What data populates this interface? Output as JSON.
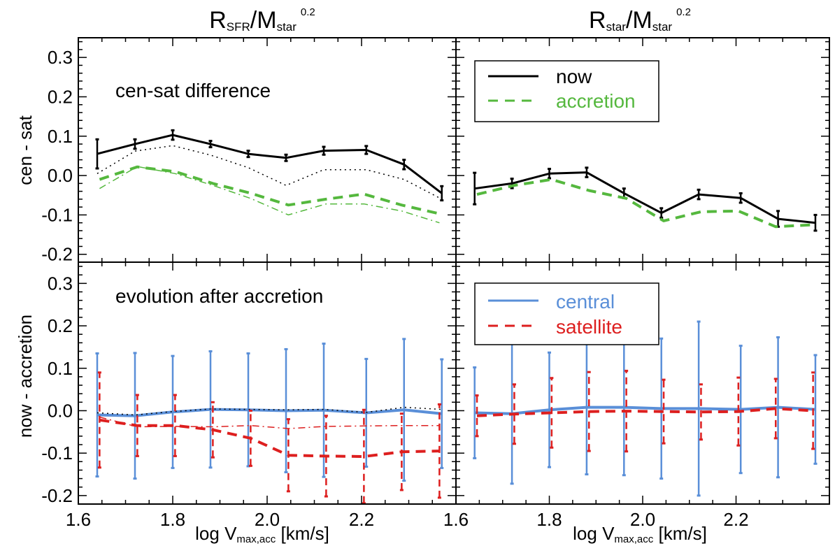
{
  "colors": {
    "black": "#000000",
    "green": "#55b83e",
    "blue": "#5a8fd8",
    "red": "#dd1f1f"
  },
  "column_titles": {
    "left": {
      "main": "R",
      "sub1": "SFR",
      "mid": "/M",
      "sub2": "star",
      "sup": "0.2"
    },
    "right": {
      "main": "R",
      "sub1": "star",
      "mid": "/M",
      "sub2": "star",
      "sup": "0.2"
    }
  },
  "ylabels": {
    "top": "cen - sat",
    "bottom": "now - accretion"
  },
  "xlabel": {
    "main": "log V",
    "sub": "max,acc",
    "unit": " [km/s]"
  },
  "panel_texts": {
    "top_left": "cen-sat difference",
    "bottom_left": "evolution after accretion"
  },
  "legends": {
    "top": [
      "now",
      "accretion"
    ],
    "bottom": [
      "central",
      "satellite"
    ]
  },
  "xticks": [
    "1.6",
    "1.8",
    "2.0",
    "2.2"
  ],
  "yticks": [
    "-0.2",
    "-0.1",
    "0.0",
    "0.1",
    "0.2",
    "0.3"
  ],
  "chart_data": [
    {
      "type": "line",
      "panel": "top-left",
      "xlim": [
        1.6,
        2.4
      ],
      "ylim": [
        -0.22,
        0.35
      ],
      "series": [
        {
          "name": "now",
          "style": "solid-black",
          "x": [
            1.64,
            1.72,
            1.8,
            1.88,
            1.96,
            2.04,
            2.12,
            2.21,
            2.29,
            2.37
          ],
          "y": [
            0.055,
            0.08,
            0.103,
            0.08,
            0.055,
            0.045,
            0.063,
            0.065,
            0.028,
            -0.045
          ],
          "err": [
            0.037,
            0.012,
            0.012,
            0.008,
            0.008,
            0.008,
            0.01,
            0.01,
            0.012,
            0.018
          ]
        },
        {
          "style": "dotted-black",
          "x": [
            1.64,
            1.72,
            1.8,
            1.88,
            1.96,
            2.04,
            2.12,
            2.21,
            2.29,
            2.37
          ],
          "y": [
            0.005,
            0.062,
            0.076,
            0.052,
            0.02,
            -0.025,
            0.015,
            0.015,
            -0.01,
            -0.06
          ]
        },
        {
          "name": "accretion",
          "style": "dashed-green",
          "x": [
            1.645,
            1.725,
            1.805,
            1.885,
            1.965,
            2.045,
            2.125,
            2.205,
            2.285,
            2.365
          ],
          "y": [
            -0.01,
            0.022,
            0.01,
            -0.02,
            -0.045,
            -0.075,
            -0.06,
            -0.047,
            -0.075,
            -0.097
          ]
        },
        {
          "style": "dashdot-green",
          "x": [
            1.645,
            1.725,
            1.805,
            1.885,
            1.965,
            2.045,
            2.125,
            2.205,
            2.285,
            2.365
          ],
          "y": [
            -0.033,
            0.023,
            0.005,
            -0.025,
            -0.058,
            -0.1,
            -0.072,
            -0.072,
            -0.09,
            -0.12
          ]
        }
      ]
    },
    {
      "type": "line",
      "panel": "top-right",
      "xlim": [
        1.6,
        2.4
      ],
      "ylim": [
        -0.22,
        0.35
      ],
      "series": [
        {
          "name": "now",
          "style": "solid-black",
          "x": [
            1.64,
            1.72,
            1.8,
            1.88,
            1.96,
            2.04,
            2.12,
            2.21,
            2.29,
            2.37
          ],
          "y": [
            -0.033,
            -0.02,
            0.005,
            0.008,
            -0.045,
            -0.095,
            -0.048,
            -0.057,
            -0.11,
            -0.12
          ],
          "err": [
            0.04,
            0.012,
            0.012,
            0.012,
            0.012,
            0.012,
            0.012,
            0.012,
            0.02,
            0.02
          ]
        },
        {
          "name": "accretion",
          "style": "dashed-green",
          "x": [
            1.645,
            1.725,
            1.805,
            1.885,
            1.965,
            2.045,
            2.125,
            2.205,
            2.285,
            2.365
          ],
          "y": [
            -0.048,
            -0.025,
            -0.01,
            -0.038,
            -0.058,
            -0.115,
            -0.092,
            -0.09,
            -0.13,
            -0.125
          ]
        }
      ]
    },
    {
      "type": "line",
      "panel": "bottom-left",
      "xlim": [
        1.6,
        2.4
      ],
      "ylim": [
        -0.22,
        0.35
      ],
      "series": [
        {
          "name": "central",
          "style": "solid-blue",
          "x": [
            1.64,
            1.72,
            1.8,
            1.88,
            1.96,
            2.04,
            2.12,
            2.21,
            2.29,
            2.37
          ],
          "y": [
            -0.01,
            -0.012,
            -0.003,
            0.003,
            0.002,
            0.0,
            0.001,
            -0.005,
            0.002,
            -0.007
          ],
          "err": [
            0.145,
            0.148,
            0.132,
            0.137,
            0.133,
            0.145,
            0.157,
            0.127,
            0.167,
            0.128
          ]
        },
        {
          "style": "dotted-black",
          "x": [
            1.64,
            1.72,
            1.8,
            1.88,
            1.96,
            2.04,
            2.12,
            2.21,
            2.29,
            2.37
          ],
          "y": [
            -0.005,
            -0.01,
            -0.002,
            0.004,
            0.003,
            0.002,
            0.003,
            -0.004,
            0.008,
            0.003
          ]
        },
        {
          "name": "satellite",
          "style": "dashed-red",
          "x": [
            1.645,
            1.725,
            1.805,
            1.885,
            1.965,
            2.045,
            2.125,
            2.205,
            2.285,
            2.365
          ],
          "y": [
            -0.022,
            -0.035,
            -0.035,
            -0.045,
            -0.065,
            -0.105,
            -0.107,
            -0.108,
            -0.097,
            -0.095
          ],
          "err": [
            0.112,
            0.072,
            0.072,
            0.065,
            0.065,
            0.085,
            0.095,
            0.11,
            0.09,
            0.11
          ]
        },
        {
          "style": "dashdot-red",
          "x": [
            1.645,
            1.725,
            1.805,
            1.885,
            1.965,
            2.045,
            2.125,
            2.205,
            2.285,
            2.365
          ],
          "y": [
            -0.015,
            -0.038,
            -0.037,
            -0.038,
            -0.035,
            -0.042,
            -0.037,
            -0.036,
            -0.035,
            -0.035
          ]
        }
      ]
    },
    {
      "type": "line",
      "panel": "bottom-right",
      "xlim": [
        1.6,
        2.4
      ],
      "ylim": [
        -0.22,
        0.35
      ],
      "series": [
        {
          "name": "central",
          "style": "solid-blue",
          "x": [
            1.64,
            1.72,
            1.8,
            1.88,
            1.96,
            2.04,
            2.12,
            2.21,
            2.29,
            2.37
          ],
          "y": [
            -0.005,
            -0.007,
            0.002,
            0.008,
            0.008,
            0.005,
            0.005,
            0.003,
            0.008,
            0.003
          ],
          "err": [
            0.107,
            0.165,
            0.135,
            0.158,
            0.16,
            0.165,
            0.205,
            0.15,
            0.165,
            0.128
          ]
        },
        {
          "name": "satellite",
          "style": "dashed-red",
          "x": [
            1.645,
            1.725,
            1.805,
            1.885,
            1.965,
            2.045,
            2.125,
            2.205,
            2.285,
            2.365
          ],
          "y": [
            -0.012,
            -0.008,
            -0.005,
            -0.002,
            -0.001,
            -0.002,
            -0.003,
            -0.002,
            0.005,
            0.0
          ],
          "err": [
            0.048,
            0.07,
            0.082,
            0.093,
            0.095,
            0.075,
            0.065,
            0.08,
            0.07,
            0.09
          ]
        }
      ]
    }
  ]
}
